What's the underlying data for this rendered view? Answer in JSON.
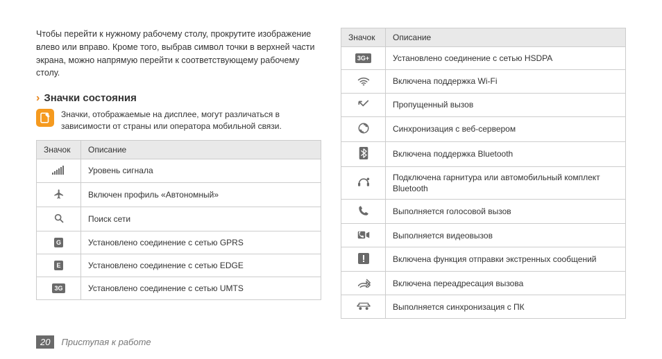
{
  "intro": "Чтобы перейти к нужному рабочему столу, прокрутите изображение влево или вправо. Кроме того, выбрав символ точки в верхней части экрана, можно напрямую перейти к соответствующему рабочему столу.",
  "section_title": "Значки состояния",
  "note": "Значки, отображаемые на дисплее, могут различаться в зависимости от страны или оператора мобильной связи.",
  "columns": {
    "icon": "Значок",
    "desc": "Описание"
  },
  "left_rows": [
    {
      "icon": "signal",
      "label": "",
      "desc": "Уровень сигнала"
    },
    {
      "icon": "airplane",
      "label": "",
      "desc": "Включен профиль «Автономный»"
    },
    {
      "icon": "search",
      "label": "",
      "desc": "Поиск сети"
    },
    {
      "icon": "badge",
      "label": "G",
      "desc": "Установлено соединение с сетью GPRS"
    },
    {
      "icon": "badge",
      "label": "E",
      "desc": "Установлено соединение с сетью EDGE"
    },
    {
      "icon": "badge",
      "label": "3G",
      "desc": "Установлено соединение с сетью UMTS"
    }
  ],
  "right_rows": [
    {
      "icon": "badge",
      "label": "3G+",
      "desc": "Установлено соединение с сетью HSDPA"
    },
    {
      "icon": "wifi",
      "label": "",
      "desc": "Включена поддержка Wi-Fi"
    },
    {
      "icon": "missed",
      "label": "",
      "desc": "Пропущенный вызов"
    },
    {
      "icon": "sync",
      "label": "",
      "desc": "Синхронизация с веб-сервером"
    },
    {
      "icon": "bt",
      "label": "",
      "desc": "Включена поддержка Bluetooth"
    },
    {
      "icon": "btheadset",
      "label": "",
      "desc": "Подключена гарнитура или автомобильный комплект Bluetooth"
    },
    {
      "icon": "call",
      "label": "",
      "desc": "Выполняется голосовой вызов"
    },
    {
      "icon": "vcall",
      "label": "",
      "desc": "Выполняется видеовызов"
    },
    {
      "icon": "alert",
      "label": "!",
      "desc": "Включена функция отправки экстренных сообщений"
    },
    {
      "icon": "fwd",
      "label": "",
      "desc": "Включена переадресация вызова"
    },
    {
      "icon": "pcsync",
      "label": "",
      "desc": "Выполняется синхронизация с ПК"
    }
  ],
  "page_number": "20",
  "footer_text": "Приступая к работе",
  "colors": {
    "accent": "#e8841a",
    "icon_gray": "#6a6a6a",
    "header_bg": "#e9e9e9",
    "border": "#cccccc"
  }
}
